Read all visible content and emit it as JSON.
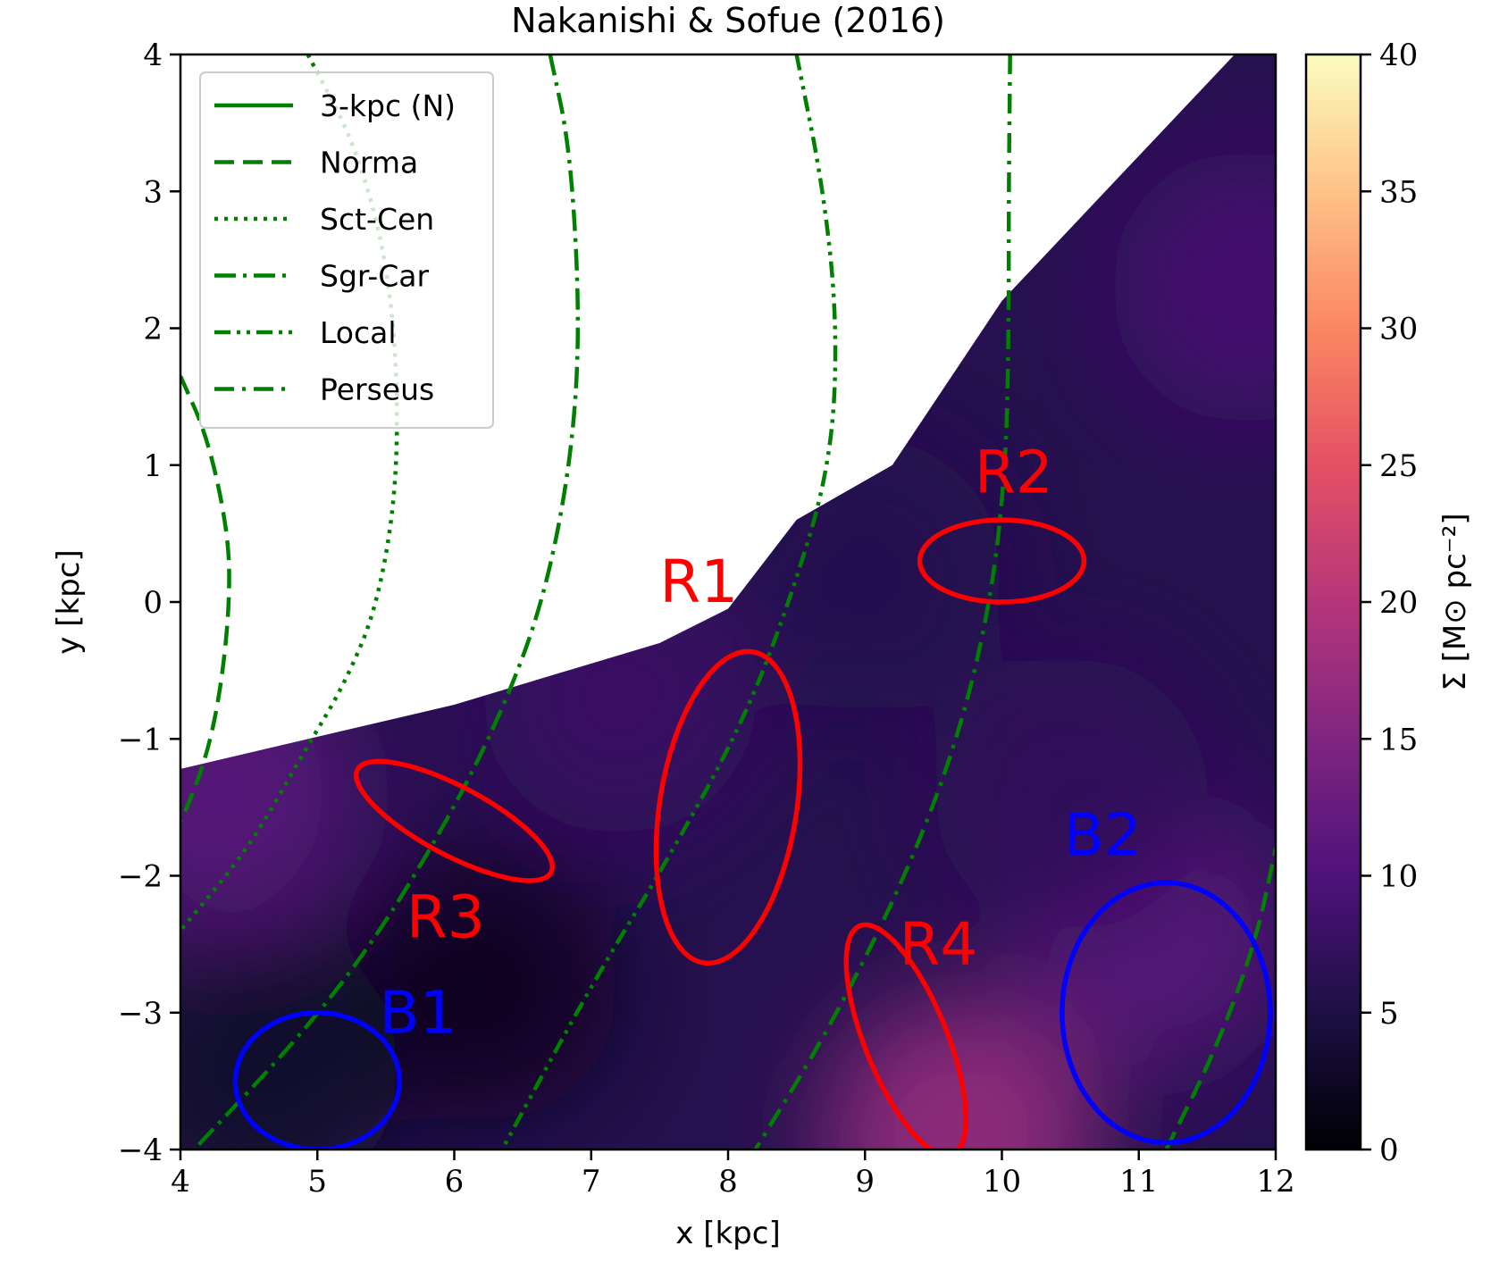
{
  "chart_data": {
    "type": "heatmap",
    "title": "Nakanishi & Sofue (2016)",
    "xlabel": "x [kpc]",
    "ylabel": "y [kpc]",
    "xlim": [
      4,
      12
    ],
    "ylim": [
      -4,
      4
    ],
    "x_ticks": [
      4,
      5,
      6,
      7,
      8,
      9,
      10,
      11,
      12
    ],
    "y_ticks": [
      -4,
      -3,
      -2,
      -1,
      0,
      1,
      2,
      3,
      4
    ],
    "x_tick_labels": [
      "4",
      "5",
      "6",
      "7",
      "8",
      "9",
      "10",
      "11",
      "12"
    ],
    "y_tick_labels": [
      "−4",
      "−3",
      "−2",
      "−1",
      "0",
      "1",
      "2",
      "3",
      "4"
    ],
    "colorbar": {
      "label": "Σ [M⊙ pc⁻²]",
      "min": 0,
      "max": 40,
      "ticks": [
        0,
        5,
        10,
        15,
        20,
        25,
        30,
        35,
        40
      ],
      "tick_labels": [
        "0",
        "5",
        "10",
        "15",
        "20",
        "25",
        "30",
        "35",
        "40"
      ],
      "colormap": "magma",
      "stops": [
        "#000004",
        "#1c1044",
        "#4f127b",
        "#812581",
        "#b5367a",
        "#e55064",
        "#fb8761",
        "#fec287",
        "#fcfdbf"
      ]
    },
    "data_coverage_boundary": [
      [
        4.0,
        -1.22
      ],
      [
        6.0,
        -0.75
      ],
      [
        7.5,
        -0.3
      ],
      [
        8.0,
        -0.05
      ],
      [
        8.5,
        0.6
      ],
      [
        9.2,
        1.0
      ],
      [
        10.0,
        2.2
      ],
      [
        11.7,
        4.0
      ],
      [
        12.0,
        4.0
      ]
    ],
    "surface_density_features": [
      {
        "x": 6.2,
        "y": -2.8,
        "value": 2
      },
      {
        "x": 4.6,
        "y": -3.4,
        "value": 3
      },
      {
        "x": 4.3,
        "y": -1.4,
        "value": 11
      },
      {
        "x": 9.7,
        "y": -3.9,
        "value": 17
      },
      {
        "x": 11.1,
        "y": -2.4,
        "value": 11
      },
      {
        "x": 11.8,
        "y": 2.3,
        "value": 9
      },
      {
        "x": 7.2,
        "y": -0.7,
        "value": 8
      },
      {
        "x": 9.0,
        "y": 0.2,
        "value": 6
      },
      {
        "x": 10.5,
        "y": -1.4,
        "value": 7
      }
    ],
    "background_value": 6,
    "spiral_arms": [
      {
        "name": "3-kpc (N)",
        "style": "solid",
        "points": []
      },
      {
        "name": "Norma",
        "style": "dashed",
        "points": [
          [
            4.0,
            1.65
          ],
          [
            4.2,
            1.2
          ],
          [
            4.35,
            0.5
          ],
          [
            4.36,
            0.0
          ],
          [
            4.3,
            -0.6
          ],
          [
            4.2,
            -1.1
          ],
          [
            4.05,
            -1.5
          ],
          [
            4.0,
            -1.6
          ]
        ]
      },
      {
        "name": "Sct-Cen",
        "style": "dotted",
        "points": [
          [
            4.93,
            4.0
          ],
          [
            5.3,
            3.3
          ],
          [
            5.55,
            2.3
          ],
          [
            5.6,
            1.0
          ],
          [
            5.45,
            0.0
          ],
          [
            5.2,
            -0.6
          ],
          [
            4.9,
            -1.1
          ],
          [
            4.5,
            -1.8
          ],
          [
            4.0,
            -2.4
          ]
        ]
      },
      {
        "name": "Sgr-Car",
        "style": "dashdot",
        "points": [
          [
            6.7,
            4.0
          ],
          [
            6.85,
            3.3
          ],
          [
            6.92,
            2.0
          ],
          [
            6.85,
            1.0
          ],
          [
            6.65,
            0.0
          ],
          [
            6.35,
            -0.8
          ],
          [
            5.95,
            -1.6
          ],
          [
            5.4,
            -2.5
          ],
          [
            4.85,
            -3.2
          ],
          [
            4.1,
            -4.0
          ]
        ]
      },
      {
        "name": "Local",
        "style": "dashdotdot",
        "points": [
          [
            8.5,
            4.0
          ],
          [
            8.7,
            3.0
          ],
          [
            8.8,
            2.0
          ],
          [
            8.75,
            1.0
          ],
          [
            8.45,
            0.0
          ],
          [
            8.1,
            -0.9
          ],
          [
            7.55,
            -1.9
          ],
          [
            7.0,
            -2.8
          ],
          [
            6.35,
            -4.0
          ]
        ]
      },
      {
        "name": "Perseus",
        "style": "dashdotlong",
        "points": [
          [
            10.06,
            4.0
          ],
          [
            10.05,
            3.0
          ],
          [
            10.05,
            2.0
          ],
          [
            10.03,
            1.0
          ],
          [
            9.92,
            0.0
          ],
          [
            9.68,
            -1.0
          ],
          [
            9.3,
            -2.0
          ],
          [
            8.75,
            -3.1
          ],
          [
            8.2,
            -4.0
          ]
        ]
      },
      {
        "name": "",
        "style": "dashed",
        "points": [
          [
            11.2,
            -4.0
          ],
          [
            11.55,
            -3.3
          ],
          [
            11.85,
            -2.5
          ],
          [
            12.0,
            -1.8
          ]
        ]
      }
    ],
    "legend": {
      "location": "upper left",
      "entries": [
        "3-kpc (N)",
        "Norma",
        "Sct-Cen",
        "Sgr-Car",
        "Local",
        "Perseus"
      ]
    },
    "regions": [
      {
        "label": "R1",
        "color": "#ff0000",
        "cx": 8.0,
        "cy": -1.5,
        "rx": 0.5,
        "ry": 1.15,
        "angle_deg": 9,
        "label_x": 7.5,
        "label_y": 0.0
      },
      {
        "label": "R2",
        "color": "#ff0000",
        "cx": 10.0,
        "cy": 0.3,
        "rx": 0.6,
        "ry": 0.3,
        "angle_deg": 0,
        "label_x": 9.8,
        "label_y": 0.8
      },
      {
        "label": "R3",
        "color": "#ff0000",
        "cx": 6.0,
        "cy": -1.6,
        "rx": 0.8,
        "ry": 0.25,
        "angle_deg": 28,
        "label_x": 5.65,
        "label_y": -2.45
      },
      {
        "label": "R4",
        "color": "#ff0000",
        "cx": 9.3,
        "cy": -3.2,
        "rx": 0.3,
        "ry": 0.9,
        "angle_deg": -22,
        "label_x": 9.25,
        "label_y": -2.65
      },
      {
        "label": "B1",
        "color": "#0000ff",
        "cx": 5.0,
        "cy": -3.5,
        "rx": 0.6,
        "ry": 0.5,
        "angle_deg": 0,
        "label_x": 5.45,
        "label_y": -3.15
      },
      {
        "label": "B2",
        "color": "#0000ff",
        "cx": 11.2,
        "cy": -3.0,
        "rx": 0.76,
        "ry": 0.95,
        "angle_deg": 0,
        "label_x": 10.45,
        "label_y": -1.85
      }
    ]
  }
}
